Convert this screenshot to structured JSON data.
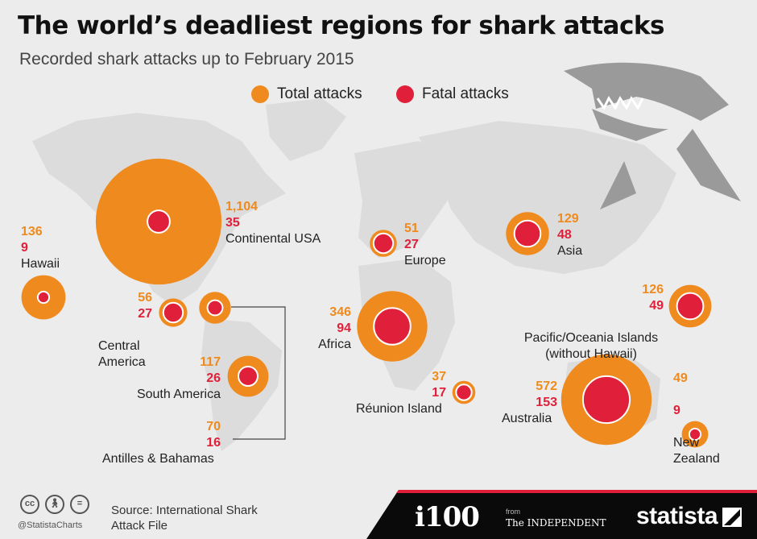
{
  "header": {
    "title": "The world’s deadliest regions for shark attacks",
    "subtitle": "Recorded shark attacks up to February 2015"
  },
  "legend": {
    "total_label": "Total attacks",
    "fatal_label": "Fatal attacks"
  },
  "colors": {
    "total": "#ef8a1e",
    "fatal": "#e0203a",
    "land": "#dcdcdc",
    "background": "#ececec"
  },
  "chart_data": {
    "type": "bubble-map",
    "series": [
      {
        "name": "Total attacks"
      },
      {
        "name": "Fatal attacks"
      }
    ],
    "regions": [
      {
        "name": "Continental USA",
        "total": 1104,
        "total_label": "1,104",
        "fatal": 35
      },
      {
        "name": "Hawaii",
        "total": 136,
        "total_label": "136",
        "fatal": 9
      },
      {
        "name": "Central America",
        "total": 56,
        "total_label": "56",
        "fatal": 27
      },
      {
        "name": "South America",
        "total": 117,
        "total_label": "117",
        "fatal": 26
      },
      {
        "name": "Antilles & Bahamas",
        "total": 70,
        "total_label": "70",
        "fatal": 16
      },
      {
        "name": "Europe",
        "total": 51,
        "total_label": "51",
        "fatal": 27
      },
      {
        "name": "Africa",
        "total": 346,
        "total_label": "346",
        "fatal": 94
      },
      {
        "name": "Réunion Island",
        "total": 37,
        "total_label": "37",
        "fatal": 17
      },
      {
        "name": "Asia",
        "total": 129,
        "total_label": "129",
        "fatal": 48
      },
      {
        "name": "Pacific/Oceania Islands\n(without Hawaii)",
        "total": 126,
        "total_label": "126",
        "fatal": 49
      },
      {
        "name": "Australia",
        "total": 572,
        "total_label": "572",
        "fatal": 153
      },
      {
        "name": "New\nZealand",
        "total": 49,
        "total_label": "49",
        "fatal": 9
      }
    ]
  },
  "footer": {
    "handle": "@StatistaCharts",
    "source_line1": "Source: International Shark",
    "source_line2": "Attack File",
    "i100": "i100",
    "from": "from",
    "independent": "The INDEPENDENT",
    "statista": "statista"
  }
}
